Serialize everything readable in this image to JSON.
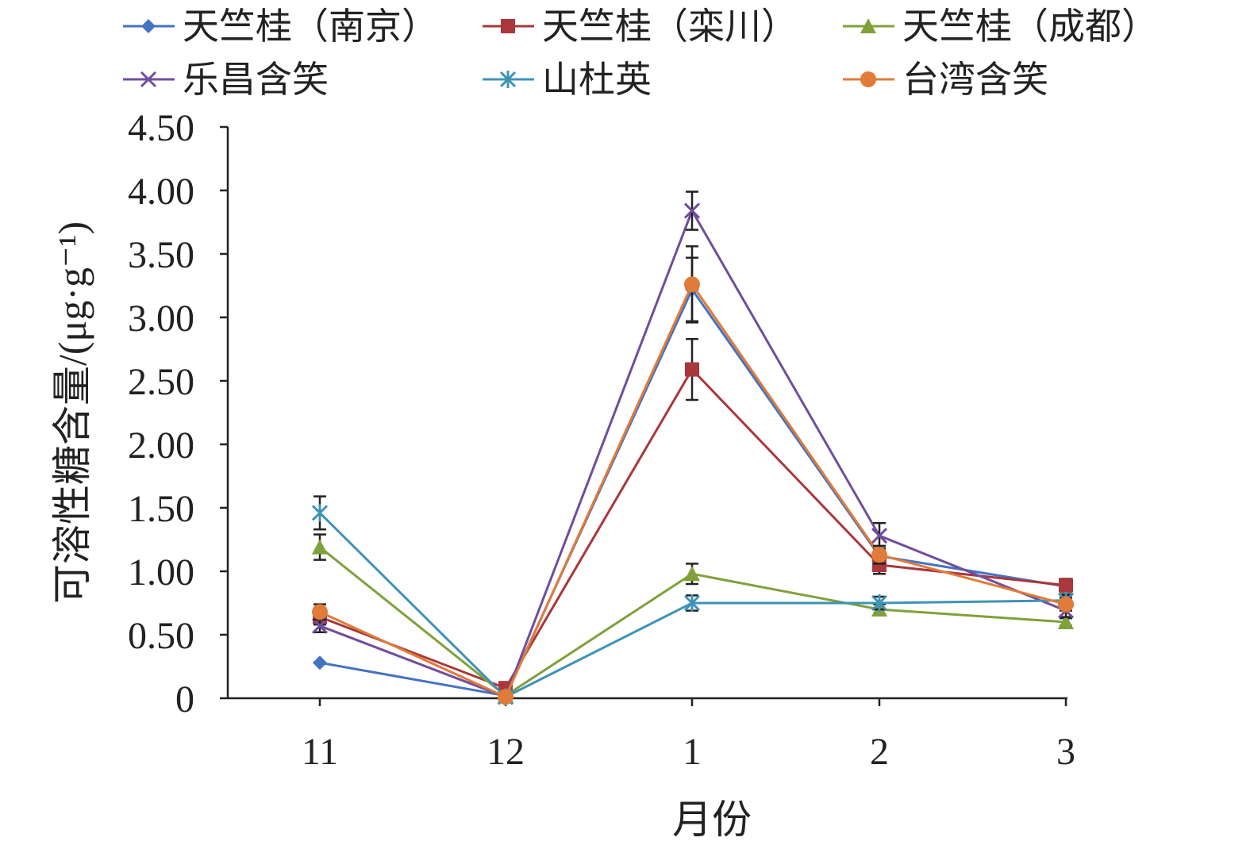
{
  "chart_data": {
    "type": "line",
    "xlabel": "月份",
    "ylabel": "可溶性糖含量/(μg·g⁻¹)",
    "categories": [
      "11",
      "12",
      "1",
      "2",
      "3"
    ],
    "yticks": [
      "0",
      "0.50",
      "1.00",
      "1.50",
      "2.00",
      "2.50",
      "3.00",
      "3.50",
      "4.00",
      "4.50"
    ],
    "ylim": [
      0,
      4.5
    ],
    "grid": false,
    "legend_position": "top",
    "series": [
      {
        "name": "天竺桂（南京）",
        "color": "#4472C4",
        "marker": "diamond",
        "values": [
          0.28,
          0.02,
          3.22,
          1.12,
          0.88
        ],
        "errors": [
          0,
          0,
          0.25,
          0.08,
          0.06
        ]
      },
      {
        "name": "天竺桂（栾川）",
        "color": "#A9373B",
        "marker": "square",
        "values": [
          0.64,
          0.08,
          2.59,
          1.05,
          0.89
        ],
        "errors": [
          0.06,
          0,
          0.24,
          0.07,
          0.05
        ]
      },
      {
        "name": "天竺桂（成都）",
        "color": "#7FA13B",
        "marker": "triangle",
        "values": [
          1.19,
          0.02,
          0.98,
          0.7,
          0.6
        ],
        "errors": [
          0.1,
          0,
          0.08,
          0.04,
          0.03
        ]
      },
      {
        "name": "乐昌含笑",
        "color": "#6F4E9C",
        "marker": "x",
        "values": [
          0.57,
          0.01,
          3.84,
          1.28,
          0.69
        ],
        "errors": [
          0.05,
          0,
          0.15,
          0.1,
          0.05
        ]
      },
      {
        "name": "山杜英",
        "color": "#3F93B5",
        "marker": "asterisk",
        "values": [
          1.46,
          0.01,
          0.75,
          0.75,
          0.77
        ],
        "errors": [
          0.13,
          0,
          0.06,
          0.05,
          0.04
        ]
      },
      {
        "name": "台湾含笑",
        "color": "#E07B39",
        "marker": "circle",
        "values": [
          0.68,
          0.01,
          3.26,
          1.13,
          0.74
        ],
        "errors": [
          0.06,
          0,
          0.3,
          0.07,
          0.05
        ]
      }
    ]
  }
}
